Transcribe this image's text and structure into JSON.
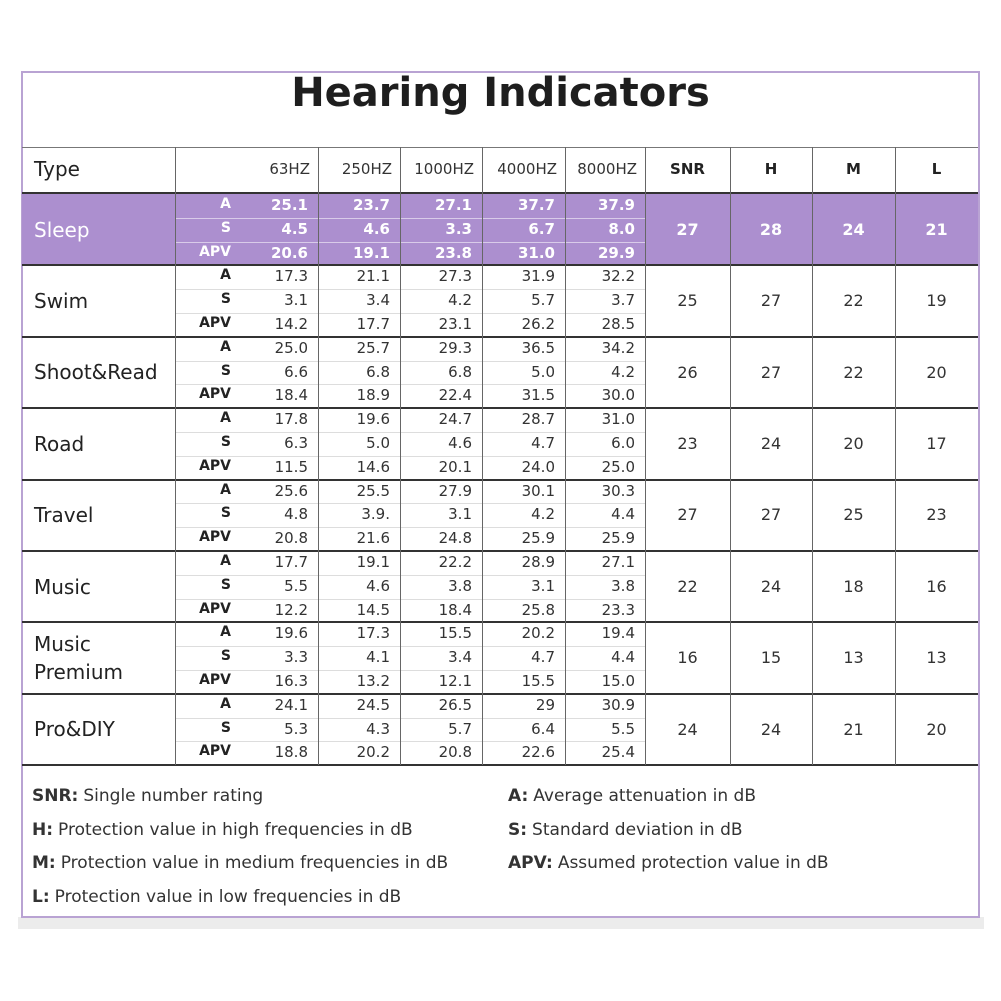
{
  "title": "Hearing Indicators",
  "table": {
    "header": [
      "Type",
      "63HZ",
      "250HZ",
      "1000HZ",
      "4000HZ",
      "8000HZ",
      "SNR",
      "H",
      "M",
      "L"
    ],
    "rows": [
      {
        "type": "Sleep",
        "measures": [
          "A",
          "S",
          "APV"
        ],
        "values": [
          [
            "25.1",
            "23.7",
            "27.1",
            "37.7",
            "37.9"
          ],
          [
            "4.5",
            "4.6",
            "3.3",
            "6.7",
            "8.0"
          ],
          [
            "20.6",
            "19.1",
            "23.8",
            "31.0",
            "29.9"
          ]
        ],
        "ratings": [
          "27",
          "28",
          "24",
          "21"
        ]
      },
      {
        "type": "Swim",
        "measures": [
          "A",
          "S",
          "APV"
        ],
        "values": [
          [
            "17.3",
            "21.1",
            "27.3",
            "31.9",
            "32.2"
          ],
          [
            "3.1",
            "3.4",
            "4.2",
            "5.7",
            "3.7"
          ],
          [
            "14.2",
            "17.7",
            "23.1",
            "26.2",
            "28.5"
          ]
        ],
        "ratings": [
          "25",
          "27",
          "22",
          "19"
        ]
      },
      {
        "type": "Shoot&Read",
        "measures": [
          "A",
          "S",
          "APV"
        ],
        "values": [
          [
            "25.0",
            "25.7",
            "29.3",
            "36.5",
            "34.2"
          ],
          [
            "6.6",
            "6.8",
            "6.8",
            "5.0",
            "4.2"
          ],
          [
            "18.4",
            "18.9",
            "22.4",
            "31.5",
            "30.0"
          ]
        ],
        "ratings": [
          "26",
          "27",
          "22",
          "20"
        ]
      },
      {
        "type": "Road",
        "measures": [
          "A",
          "S",
          "APV"
        ],
        "values": [
          [
            "17.8",
            "19.6",
            "24.7",
            "28.7",
            "31.0"
          ],
          [
            "6.3",
            "5.0",
            "4.6",
            "4.7",
            "6.0"
          ],
          [
            "11.5",
            "14.6",
            "20.1",
            "24.0",
            "25.0"
          ]
        ],
        "ratings": [
          "23",
          "24",
          "20",
          "17"
        ]
      },
      {
        "type": "Travel",
        "measures": [
          "A",
          "S",
          "APV"
        ],
        "values": [
          [
            "25.6",
            "25.5",
            "27.9",
            "30.1",
            "30.3"
          ],
          [
            "4.8",
            "3.9.",
            "3.1",
            "4.2",
            "4.4"
          ],
          [
            "20.8",
            "21.6",
            "24.8",
            "25.9",
            "25.9"
          ]
        ],
        "ratings": [
          "27",
          "27",
          "25",
          "23"
        ]
      },
      {
        "type": "Music",
        "measures": [
          "A",
          "S",
          "APV"
        ],
        "values": [
          [
            "17.7",
            "19.1",
            "22.2",
            "28.9",
            "27.1"
          ],
          [
            "5.5",
            "4.6",
            "3.8",
            "3.1",
            "3.8"
          ],
          [
            "12.2",
            "14.5",
            "18.4",
            "25.8",
            "23.3"
          ]
        ],
        "ratings": [
          "22",
          "24",
          "18",
          "16"
        ]
      },
      {
        "type": "Music Premium",
        "measures": [
          "A",
          "S",
          "APV"
        ],
        "values": [
          [
            "19.6",
            "17.3",
            "15.5",
            "20.2",
            "19.4"
          ],
          [
            "3.3",
            "4.1",
            "3.4",
            "4.7",
            "4.4"
          ],
          [
            "16.3",
            "13.2",
            "12.1",
            "15.5",
            "15.0"
          ]
        ],
        "ratings": [
          "16",
          "15",
          "13",
          "13"
        ]
      },
      {
        "type": "Pro&DIY",
        "measures": [
          "A",
          "S",
          "APV"
        ],
        "values": [
          [
            "24.1",
            "24.5",
            "26.5",
            "29",
            "30.9"
          ],
          [
            "5.3",
            "4.3",
            "5.7",
            "6.4",
            "5.5"
          ],
          [
            "18.8",
            "20.2",
            "20.8",
            "22.6",
            "25.4"
          ]
        ],
        "ratings": [
          "24",
          "24",
          "21",
          "20"
        ]
      }
    ]
  },
  "legend": {
    "left": [
      {
        "key": "SNR:",
        "text": "Single number rating"
      },
      {
        "key": "H:",
        "text": "Protection value in high frequencies in dB"
      },
      {
        "key": "M:",
        "text": "Protection value in medium frequencies in dB"
      },
      {
        "key": "L:",
        "text": "Protection value in low frequencies in dB"
      }
    ],
    "right": [
      {
        "key": "A:",
        "text": "Average attenuation in dB"
      },
      {
        "key": "S:",
        "text": "Standard deviation in dB"
      },
      {
        "key": "APV:",
        "text": "Assumed protection value in dB"
      }
    ]
  }
}
